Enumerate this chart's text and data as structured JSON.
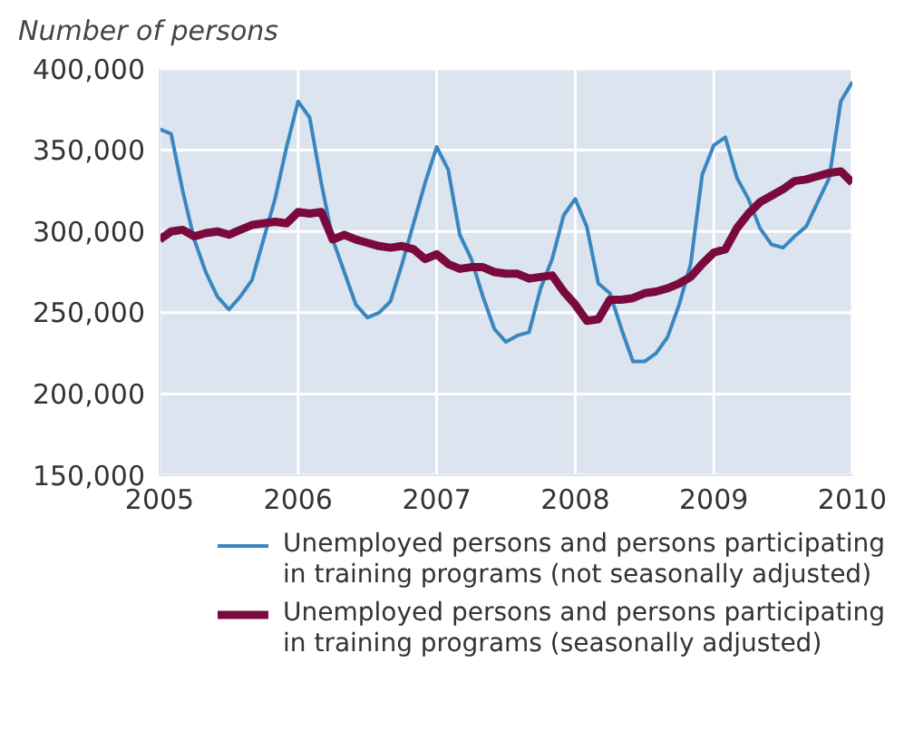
{
  "chart_data": {
    "type": "line",
    "ylabel": "Number of persons",
    "x": [
      "2005-01",
      "2005-02",
      "2005-03",
      "2005-04",
      "2005-05",
      "2005-06",
      "2005-07",
      "2005-08",
      "2005-09",
      "2005-10",
      "2005-11",
      "2005-12",
      "2006-01",
      "2006-02",
      "2006-03",
      "2006-04",
      "2006-05",
      "2006-06",
      "2006-07",
      "2006-08",
      "2006-09",
      "2006-10",
      "2006-11",
      "2006-12",
      "2007-01",
      "2007-02",
      "2007-03",
      "2007-04",
      "2007-05",
      "2007-06",
      "2007-07",
      "2007-08",
      "2007-09",
      "2007-10",
      "2007-11",
      "2007-12",
      "2008-01",
      "2008-02",
      "2008-03",
      "2008-04",
      "2008-05",
      "2008-06",
      "2008-07",
      "2008-08",
      "2008-09",
      "2008-10",
      "2008-11",
      "2008-12",
      "2009-01",
      "2009-02",
      "2009-03",
      "2009-04",
      "2009-05",
      "2009-06",
      "2009-07",
      "2009-08",
      "2009-09",
      "2009-10",
      "2009-11",
      "2009-12",
      "2010-01"
    ],
    "series": [
      {
        "name": "Unemployed persons and persons participating in training programs (not seasonally adjusted)",
        "color": "#3a87c0",
        "values": [
          363000,
          360000,
          325000,
          295000,
          275000,
          260000,
          252000,
          260000,
          270000,
          295000,
          320000,
          352000,
          380000,
          370000,
          330000,
          295000,
          275000,
          255000,
          247000,
          250000,
          257000,
          280000,
          305000,
          330000,
          352000,
          338000,
          298000,
          283000,
          260000,
          240000,
          232000,
          236000,
          238000,
          265000,
          283000,
          310000,
          320000,
          303000,
          268000,
          262000,
          240000,
          220000,
          220000,
          225000,
          235000,
          255000,
          280000,
          335000,
          353000,
          358000,
          333000,
          320000,
          302000,
          292000,
          290000,
          297000,
          303000,
          318000,
          333000,
          380000,
          392000
        ]
      },
      {
        "name": "Unemployed persons and persons participating in training programs (seasonally adjusted)",
        "color": "#7a0a3e",
        "values": [
          295000,
          300000,
          301000,
          297000,
          299000,
          300000,
          298000,
          301000,
          304000,
          305000,
          306000,
          305000,
          312000,
          311000,
          312000,
          295000,
          298000,
          295000,
          293000,
          291000,
          290000,
          291000,
          289000,
          283000,
          286000,
          280000,
          277000,
          278000,
          278000,
          275000,
          274000,
          274000,
          271000,
          272000,
          273000,
          263000,
          255000,
          245000,
          246000,
          258000,
          258000,
          259000,
          262000,
          263000,
          265000,
          268000,
          272000,
          280000,
          287000,
          289000,
          302000,
          311000,
          318000,
          322000,
          326000,
          331000,
          332000,
          334000,
          336000,
          337000,
          330000
        ]
      }
    ],
    "xlim": [
      "2005-01",
      "2010-01"
    ],
    "xticks": [
      "2005",
      "2006",
      "2007",
      "2008",
      "2009",
      "2010"
    ],
    "ylim": [
      150000,
      400000
    ],
    "yticks": [
      {
        "value": 150000,
        "label": "150,000"
      },
      {
        "value": 200000,
        "label": "200,000"
      },
      {
        "value": 250000,
        "label": "250,000"
      },
      {
        "value": 300000,
        "label": "300,000"
      },
      {
        "value": 350000,
        "label": "350,000"
      },
      {
        "value": 400000,
        "label": "400,000"
      }
    ],
    "grid": true,
    "legend": "bottom"
  }
}
